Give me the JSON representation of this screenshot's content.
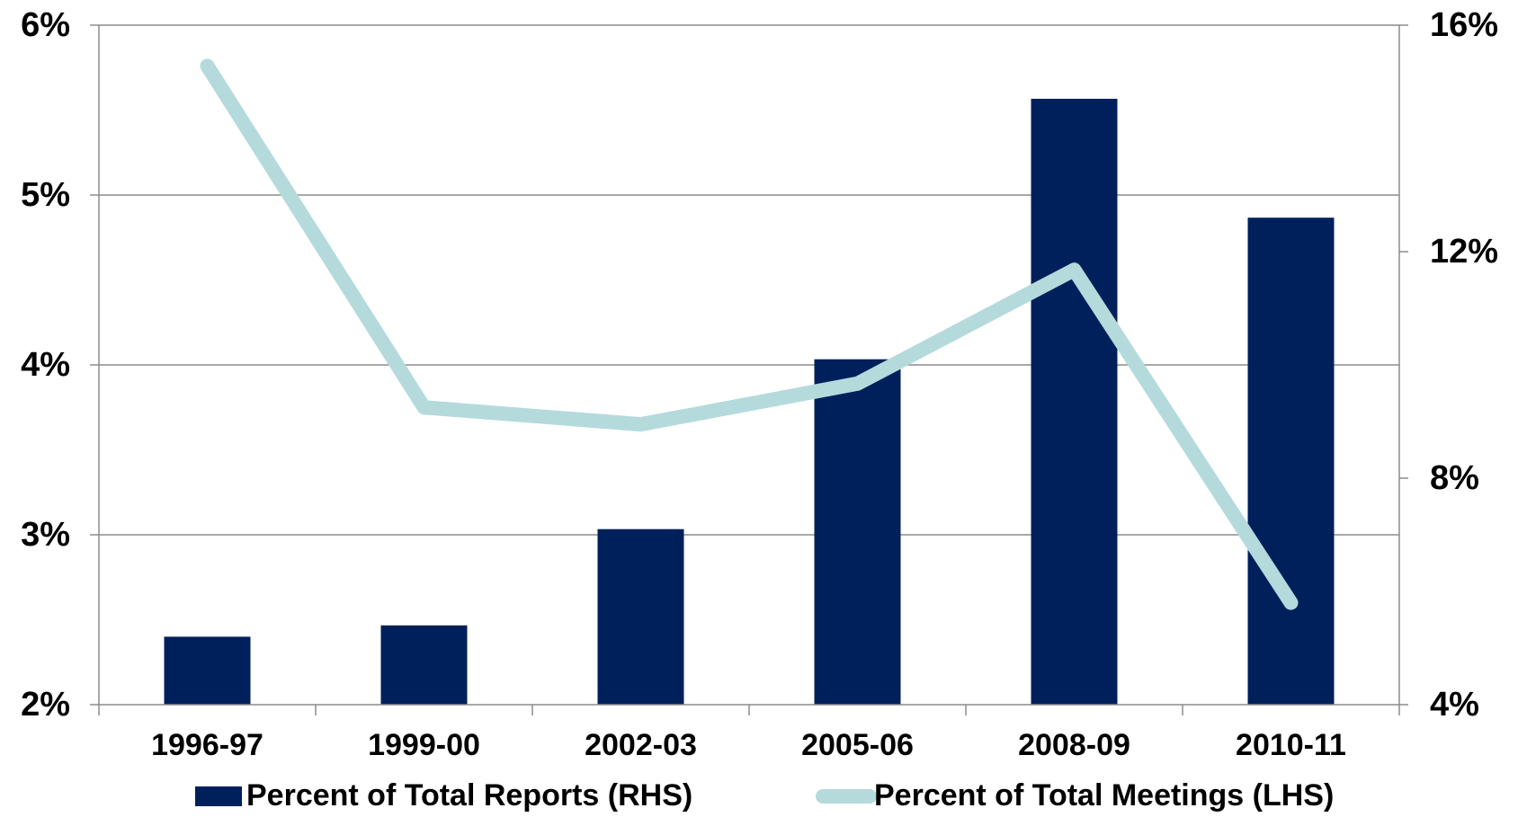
{
  "chart_data": {
    "type": "bar",
    "categories": [
      "1996-97",
      "1999-00",
      "2002-03",
      "2005-06",
      "2008-09",
      "2010-11"
    ],
    "series": [
      {
        "name": "Percent of Total Reports (RHS)",
        "type": "bar",
        "axis": "right",
        "color": "#00205B",
        "values": [
          5.2,
          5.4,
          7.1,
          10.1,
          14.7,
          12.6
        ]
      },
      {
        "name": "Percent of Total Meetings (LHS)",
        "type": "line",
        "axis": "left",
        "color": "#B4DADC",
        "values": [
          5.76,
          3.75,
          3.65,
          3.89,
          4.56,
          2.6
        ]
      }
    ],
    "y_left": {
      "ylim": [
        2,
        6
      ],
      "ticks": [
        2,
        3,
        4,
        5,
        6
      ],
      "tick_labels": [
        "2%",
        "3%",
        "4%",
        "5%",
        "6%"
      ]
    },
    "y_right": {
      "ylim": [
        4,
        16
      ],
      "ticks": [
        4,
        8,
        12,
        16
      ],
      "tick_labels": [
        "4%",
        "8%",
        "12%",
        "16%"
      ]
    },
    "grid": true,
    "legend_position": "bottom"
  }
}
